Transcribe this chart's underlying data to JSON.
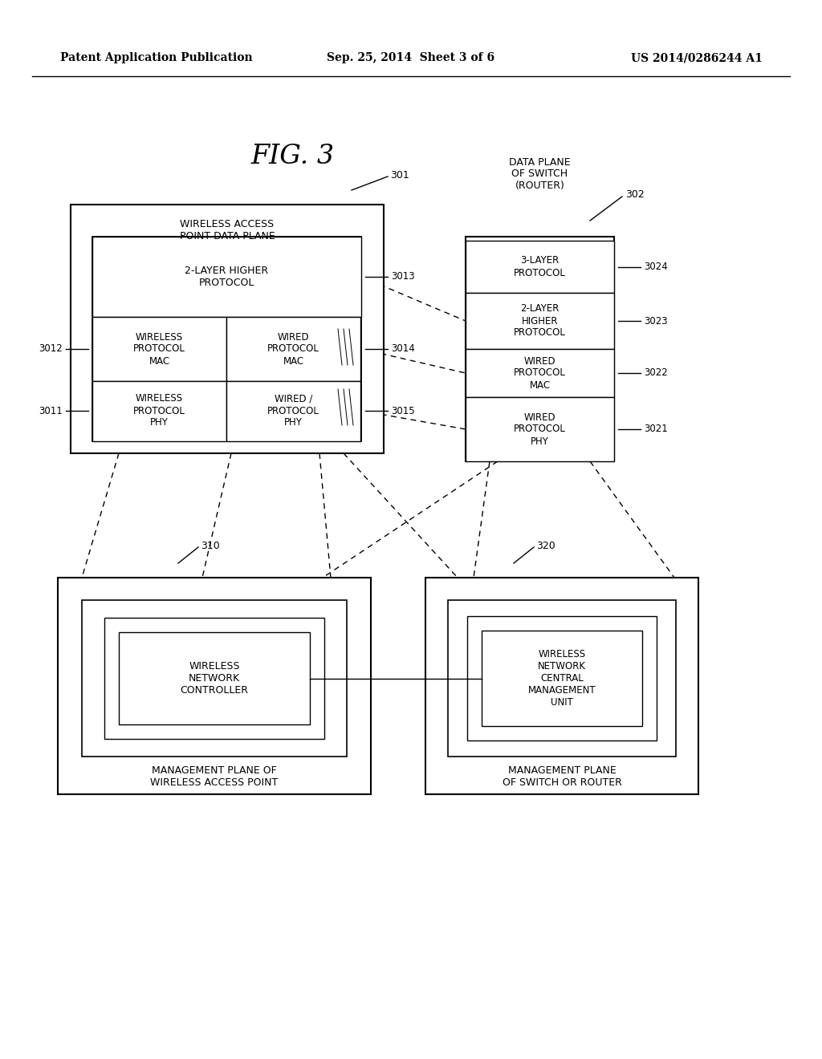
{
  "bg_color": "#ffffff",
  "header_left": "Patent Application Publication",
  "header_mid": "Sep. 25, 2014  Sheet 3 of 6",
  "header_right": "US 2014/0286244 A1"
}
